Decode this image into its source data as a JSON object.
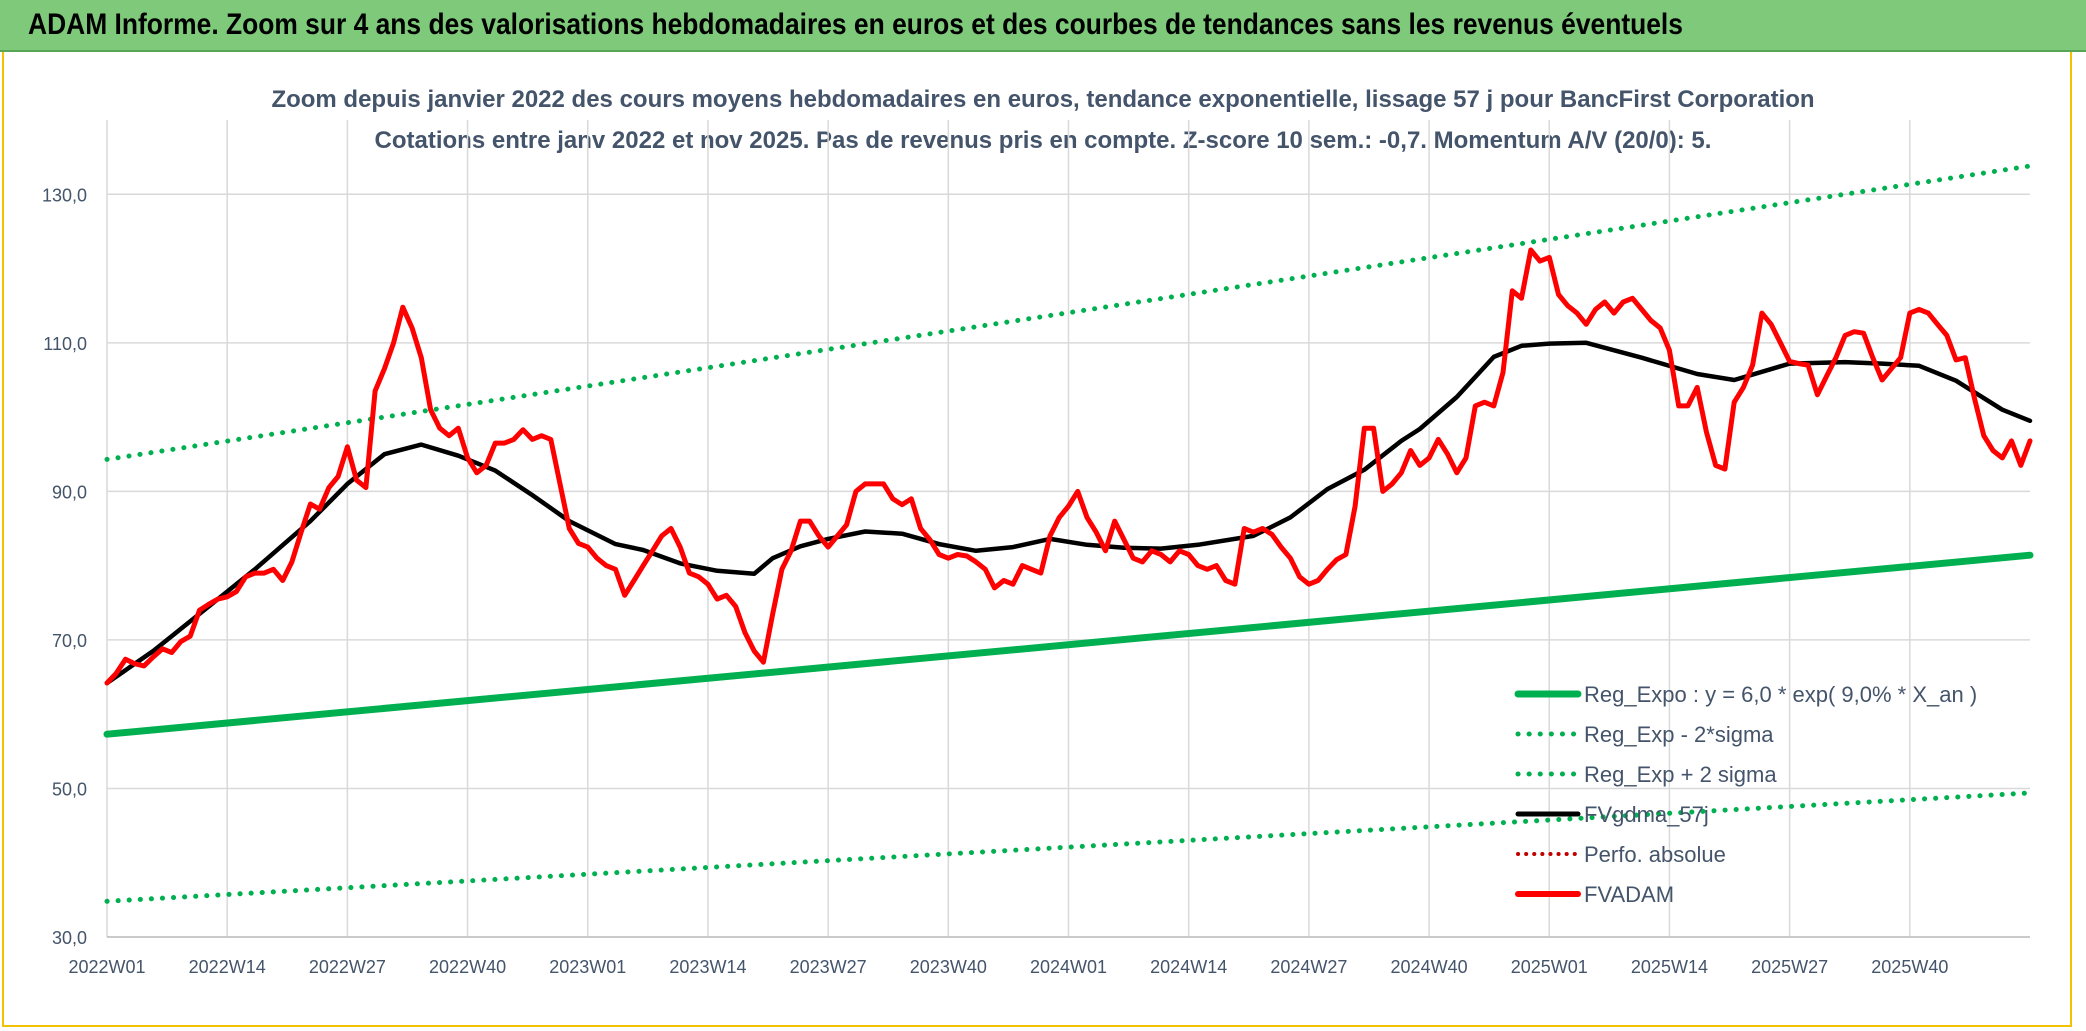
{
  "banner": {
    "title": "ADAM Informe. Zoom sur 4 ans des valorisations hebdomadaires en euros et des courbes de tendances sans les revenus éventuels"
  },
  "colors": {
    "banner": "#7ec97a",
    "frame": "#f2c200",
    "reg_expo": "#00b050",
    "fvgdma": "#000000",
    "perfo": "#c00000",
    "fvadam": "#ff0000",
    "grid": "#d9d9d9",
    "text": "#44546a"
  },
  "chart_data": {
    "type": "line",
    "title_line1": "Zoom depuis janvier 2022 des cours moyens hebdomadaires en euros, tendance exponentielle, lissage 57 j pour BancFirst Corporation",
    "title_line2": "Cotations entre janv 2022 et nov 2025. Pas de revenus pris en compte. Z-score 10 sem.: -0,7. Momentum A/V (20/0): 5.",
    "x_tick_labels": [
      "2022W01",
      "2022W14",
      "2022W27",
      "2022W40",
      "2023W01",
      "2023W14",
      "2023W27",
      "2023W40",
      "2024W01",
      "2024W14",
      "2024W27",
      "2024W40",
      "2025W01",
      "2025W14",
      "2025W27",
      "2025W40"
    ],
    "x_tick_positions": [
      0,
      13,
      26,
      39,
      52,
      65,
      78,
      91,
      104,
      117,
      130,
      143,
      156,
      169,
      182,
      195
    ],
    "x_range": [
      0,
      208
    ],
    "y_tick_labels": [
      "30,0",
      "50,0",
      "70,0",
      "90,0",
      "110,0",
      "130,0"
    ],
    "y_ticks": [
      30,
      50,
      70,
      90,
      110,
      130
    ],
    "ylim": [
      30,
      140
    ],
    "grid": true,
    "legend_position": "bottom-right",
    "legend": [
      {
        "label": "Reg_Expo : y = 6,0 * exp( 9,0% *  X_an )",
        "key": "reg_expo",
        "style": "solid"
      },
      {
        "label": "Reg_Exp - 2*sigma",
        "key": "reg_lo",
        "style": "dotted"
      },
      {
        "label": "Reg_Exp + 2 sigma",
        "key": "reg_hi",
        "style": "dotted"
      },
      {
        "label": "FVgdma_57j",
        "key": "fvgdma",
        "style": "solid"
      },
      {
        "label": "Perfo. absolue",
        "key": "perfo",
        "style": "dotted"
      },
      {
        "label": "FVADAM",
        "key": "fvadam",
        "style": "solid"
      }
    ],
    "series": {
      "reg_expo": {
        "x": [
          0,
          208
        ],
        "y": [
          57.3,
          81.4
        ]
      },
      "reg_hi": {
        "x": [
          0,
          208
        ],
        "y": [
          94.3,
          133.8
        ]
      },
      "reg_lo": {
        "x": [
          0,
          208
        ],
        "y": [
          34.8,
          49.4
        ]
      },
      "fvgdma": {
        "x": [
          0,
          5,
          10,
          16,
          22,
          26,
          30,
          34,
          38,
          42,
          46,
          50,
          55,
          58,
          62,
          66,
          70,
          72,
          75,
          78,
          82,
          86,
          90,
          94,
          98,
          102,
          106,
          110,
          114,
          118,
          124,
          128,
          132,
          136,
          140,
          142,
          146,
          150,
          153,
          156,
          160,
          166,
          172,
          176,
          182,
          188,
          192,
          196,
          200,
          205,
          208
        ],
        "y": [
          64.2,
          68.5,
          73.5,
          79.5,
          86,
          91,
          95,
          96.3,
          94.8,
          92.8,
          89.5,
          86,
          82.9,
          82.1,
          80.3,
          79.3,
          78.9,
          81,
          82.6,
          83.6,
          84.6,
          84.3,
          82.9,
          82,
          82.5,
          83.6,
          82.8,
          82.4,
          82.3,
          82.8,
          84,
          86.5,
          90.3,
          92.9,
          96.8,
          98.4,
          102.7,
          108.1,
          109.6,
          109.9,
          110,
          108,
          105.8,
          105,
          107.2,
          107.4,
          107.2,
          106.9,
          104.9,
          101,
          99.5
        ]
      },
      "fvadam": {
        "x": [
          0,
          1,
          2,
          3,
          4,
          5,
          6,
          7,
          8,
          9,
          10,
          11,
          12,
          13,
          14,
          15,
          16,
          17,
          18,
          19,
          20,
          21,
          22,
          23,
          24,
          25,
          26,
          27,
          28,
          29,
          30,
          31,
          32,
          33,
          34,
          35,
          36,
          37,
          38,
          39,
          40,
          41,
          42,
          43,
          44,
          45,
          46,
          47,
          48,
          49,
          50,
          51,
          52,
          53,
          54,
          55,
          56,
          57,
          58,
          59,
          60,
          61,
          62,
          63,
          64,
          65,
          66,
          67,
          68,
          69,
          70,
          71,
          72,
          73,
          74,
          75,
          76,
          77,
          78,
          79,
          80,
          81,
          82,
          83,
          84,
          85,
          86,
          87,
          88,
          89,
          90,
          91,
          92,
          93,
          94,
          95,
          96,
          97,
          98,
          99,
          100,
          101,
          102,
          103,
          104,
          105,
          106,
          107,
          108,
          109,
          110,
          111,
          112,
          113,
          114,
          115,
          116,
          117,
          118,
          119,
          120,
          121,
          122,
          123,
          124,
          125,
          126,
          127,
          128,
          129,
          130,
          131,
          132,
          133,
          134,
          135,
          136,
          137,
          138,
          139,
          140,
          141,
          142,
          143,
          144,
          145,
          146,
          147,
          148,
          149,
          150,
          151,
          152,
          153,
          154,
          155,
          156,
          157,
          158,
          159,
          160,
          161,
          162,
          163,
          164,
          165,
          166,
          167,
          168,
          169,
          170,
          171,
          172,
          173,
          174,
          175,
          176,
          177,
          178,
          179,
          180,
          181,
          182,
          183,
          184,
          185,
          186,
          187,
          188,
          189,
          190,
          191,
          192,
          193,
          194,
          195,
          196,
          197,
          198,
          199,
          200,
          201,
          202,
          203,
          204,
          205,
          206,
          207,
          208
        ],
        "y": [
          64.2,
          65.5,
          67.4,
          66.8,
          66.5,
          67.7,
          68.8,
          68.3,
          69.8,
          70.5,
          74,
          74.8,
          75.5,
          75.8,
          76.5,
          78.5,
          79,
          79,
          79.5,
          78,
          80.5,
          84.5,
          88.3,
          87.6,
          90.5,
          92,
          96,
          91.5,
          90.5,
          103.5,
          106.5,
          110,
          114.8,
          112,
          108,
          101,
          98.5,
          97.5,
          98.5,
          94.5,
          92.5,
          93.5,
          96.5,
          96.5,
          97,
          98.3,
          97,
          97.5,
          97,
          91,
          85,
          83,
          82.5,
          81,
          80,
          79.5,
          76,
          78,
          80,
          82,
          84,
          85,
          82.5,
          79,
          78.5,
          77.5,
          75.5,
          76,
          74.5,
          71,
          68.5,
          67,
          73.5,
          79.5,
          82,
          86,
          86,
          84,
          82.5,
          84,
          85.5,
          90,
          91,
          91,
          91,
          89,
          88.2,
          89,
          85,
          83.5,
          81.5,
          81,
          81.5,
          81.3,
          80.5,
          79.5,
          77,
          78,
          77.5,
          80,
          79.5,
          79,
          84,
          86.5,
          88,
          90,
          86.5,
          84.5,
          82,
          86,
          83.5,
          81,
          80.5,
          82,
          81.5,
          80.5,
          82,
          81.5,
          80,
          79.5,
          80,
          78,
          77.5,
          85,
          84.5,
          85,
          84.2,
          82.5,
          81,
          78.5,
          77.5,
          78,
          79.5,
          80.8,
          81.5,
          88,
          98.5,
          98.5,
          90,
          91,
          92.5,
          95.5,
          93.5,
          94.5,
          97,
          95,
          92.5,
          94.5,
          101.5,
          102,
          101.5,
          106,
          117,
          116,
          122.5,
          121,
          121.5,
          116.5,
          115,
          114,
          112.5,
          114.5,
          115.5,
          114,
          115.5,
          116,
          114.5,
          113,
          112,
          109,
          101.5,
          101.5,
          104,
          98,
          93.5,
          93,
          102,
          104,
          107,
          114,
          112.5,
          110,
          107.5,
          107.2,
          107,
          103,
          105.5,
          108,
          111,
          111.5,
          111.3,
          108,
          105,
          106.5,
          108,
          114,
          114.5,
          114,
          112.5,
          111,
          107.7,
          108,
          102.5,
          97.5,
          95.5,
          94.5,
          96.8,
          93.5,
          96.8
        ]
      }
    }
  }
}
